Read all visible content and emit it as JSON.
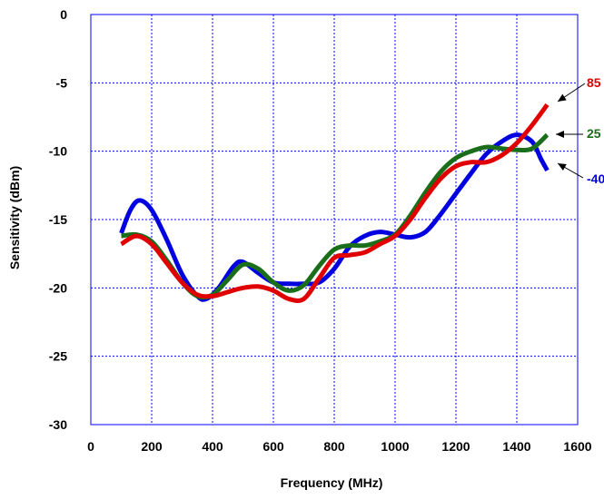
{
  "chart_data": {
    "type": "line",
    "title": "",
    "xlabel": "Frequency (MHz)",
    "ylabel": "Sensitivity (dBm)",
    "xlim": [
      0,
      1600
    ],
    "ylim": [
      -30,
      0
    ],
    "x_ticks": [
      "0",
      "200",
      "400",
      "600",
      "800",
      "1000",
      "1200",
      "1400",
      "1600"
    ],
    "y_ticks": [
      "0",
      "-5",
      "-10",
      "-15",
      "-20",
      "-25",
      "-30"
    ],
    "grid": true,
    "series": [
      {
        "name": "85",
        "color": "#e00000",
        "points": [
          [
            100,
            -16.8
          ],
          [
            150,
            -16.2
          ],
          [
            200,
            -16.8
          ],
          [
            250,
            -18.2
          ],
          [
            300,
            -19.6
          ],
          [
            350,
            -20.5
          ],
          [
            400,
            -20.6
          ],
          [
            450,
            -20.3
          ],
          [
            500,
            -20.0
          ],
          [
            550,
            -19.9
          ],
          [
            600,
            -20.2
          ],
          [
            650,
            -20.8
          ],
          [
            700,
            -20.8
          ],
          [
            750,
            -19.3
          ],
          [
            800,
            -17.8
          ],
          [
            850,
            -17.6
          ],
          [
            900,
            -17.4
          ],
          [
            950,
            -16.8
          ],
          [
            1000,
            -16.2
          ],
          [
            1050,
            -15.0
          ],
          [
            1100,
            -13.4
          ],
          [
            1150,
            -12.0
          ],
          [
            1200,
            -11.1
          ],
          [
            1250,
            -10.8
          ],
          [
            1300,
            -10.8
          ],
          [
            1350,
            -10.3
          ],
          [
            1400,
            -9.4
          ],
          [
            1450,
            -8.1
          ],
          [
            1500,
            -6.6
          ]
        ]
      },
      {
        "name": "25",
        "color": "#1a6e1a",
        "points": [
          [
            100,
            -16.2
          ],
          [
            150,
            -16.1
          ],
          [
            200,
            -16.6
          ],
          [
            250,
            -18.0
          ],
          [
            300,
            -19.6
          ],
          [
            350,
            -20.6
          ],
          [
            400,
            -20.5
          ],
          [
            450,
            -19.4
          ],
          [
            500,
            -18.3
          ],
          [
            550,
            -18.6
          ],
          [
            600,
            -19.6
          ],
          [
            650,
            -20.2
          ],
          [
            700,
            -19.8
          ],
          [
            750,
            -18.4
          ],
          [
            800,
            -17.2
          ],
          [
            850,
            -16.9
          ],
          [
            900,
            -16.9
          ],
          [
            950,
            -16.6
          ],
          [
            1000,
            -16.1
          ],
          [
            1050,
            -14.7
          ],
          [
            1100,
            -13.0
          ],
          [
            1150,
            -11.5
          ],
          [
            1200,
            -10.5
          ],
          [
            1250,
            -10.0
          ],
          [
            1300,
            -9.7
          ],
          [
            1350,
            -9.8
          ],
          [
            1400,
            -9.9
          ],
          [
            1450,
            -9.8
          ],
          [
            1500,
            -8.8
          ]
        ]
      },
      {
        "name": "-40",
        "color": "#0000e0",
        "points": [
          [
            100,
            -16.0
          ],
          [
            130,
            -14.3
          ],
          [
            160,
            -13.6
          ],
          [
            200,
            -14.3
          ],
          [
            250,
            -16.5
          ],
          [
            300,
            -19.0
          ],
          [
            350,
            -20.6
          ],
          [
            380,
            -20.8
          ],
          [
            420,
            -20.0
          ],
          [
            470,
            -18.4
          ],
          [
            500,
            -18.1
          ],
          [
            550,
            -18.9
          ],
          [
            600,
            -19.6
          ],
          [
            650,
            -19.7
          ],
          [
            700,
            -19.7
          ],
          [
            750,
            -19.6
          ],
          [
            800,
            -18.6
          ],
          [
            850,
            -17.0
          ],
          [
            900,
            -16.2
          ],
          [
            950,
            -15.9
          ],
          [
            1000,
            -16.1
          ],
          [
            1050,
            -16.3
          ],
          [
            1100,
            -15.9
          ],
          [
            1150,
            -14.6
          ],
          [
            1200,
            -13.1
          ],
          [
            1250,
            -11.6
          ],
          [
            1300,
            -10.2
          ],
          [
            1350,
            -9.3
          ],
          [
            1400,
            -8.8
          ],
          [
            1450,
            -9.3
          ],
          [
            1480,
            -10.6
          ],
          [
            1500,
            -11.4
          ]
        ]
      }
    ]
  }
}
